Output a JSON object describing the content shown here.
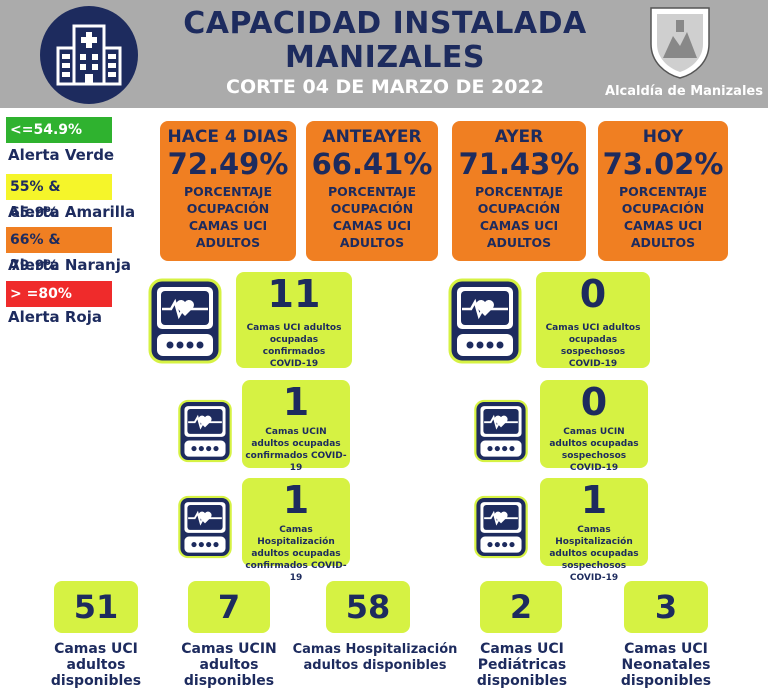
{
  "header": {
    "title_line1": "CAPACIDAD INSTALADA",
    "title_line2": "MANIZALES",
    "subtitle": "CORTE 04 DE MARZO DE 2022",
    "alcaldia": "Alcaldía de Manizales"
  },
  "legend": [
    {
      "range": "<=54.9%",
      "label": "Alerta Verde",
      "color": "#2fb22f"
    },
    {
      "range": "55% & 65.9%",
      "label": "Alerta Amarilla",
      "color": "#f5f52a"
    },
    {
      "range": "66% & 79.9%",
      "label": "Alerta Naranja",
      "color": "#f07f22"
    },
    {
      "range": "> =80%",
      "label": "Alerta Roja",
      "color": "#ef2b2b"
    }
  ],
  "occupancy": [
    {
      "label": "HACE 4 DIAS",
      "value": "72.49%",
      "desc": [
        "PORCENTAJE",
        "OCUPACIÓN",
        "CAMAS UCI",
        "ADULTOS"
      ]
    },
    {
      "label": "ANTEAYER",
      "value": "66.41%",
      "desc": [
        "PORCENTAJE",
        "OCUPACIÓN",
        "CAMAS UCI",
        "ADULTOS"
      ]
    },
    {
      "label": "AYER",
      "value": "71.43%",
      "desc": [
        "PORCENTAJE",
        "OCUPACIÓN",
        "CAMAS UCI",
        "ADULTOS"
      ]
    },
    {
      "label": "HOY",
      "value": "73.02%",
      "desc": [
        "PORCENTAJE",
        "OCUPACIÓN",
        "CAMAS UCI",
        "ADULTOS"
      ]
    }
  ],
  "covid_stats": [
    {
      "value": "11",
      "lines": [
        "Camas UCI adultos",
        "ocupadas confirmados",
        "COVID-19"
      ]
    },
    {
      "value": "0",
      "lines": [
        "Camas UCI adultos",
        "ocupadas sospechosos",
        "COVID-19"
      ]
    },
    {
      "value": "1",
      "lines": [
        "Camas UCIN",
        "adultos ocupadas",
        "confirmados COVID-19"
      ]
    },
    {
      "value": "0",
      "lines": [
        "Camas UCIN",
        "adultos ocupadas",
        "sospechosos COVID-19"
      ]
    },
    {
      "value": "1",
      "lines": [
        "Camas Hospitalización",
        "adultos ocupadas",
        "confirmados COVID-19"
      ]
    },
    {
      "value": "1",
      "lines": [
        "Camas Hospitalización",
        "adultos ocupadas",
        "sospechosos COVID-19"
      ]
    }
  ],
  "available": [
    {
      "value": "51",
      "lines": [
        "Camas UCI",
        "adultos",
        "disponibles"
      ]
    },
    {
      "value": "7",
      "lines": [
        "Camas UCIN",
        "adultos",
        "disponibles"
      ]
    },
    {
      "value": "58",
      "lines": [
        "Camas Hospitalización",
        "adultos disponibles"
      ]
    },
    {
      "value": "2",
      "lines": [
        "Camas UCI",
        "Pediátricas",
        "disponibles"
      ]
    },
    {
      "value": "3",
      "lines": [
        "Camas UCI",
        "Neonatales",
        "disponibles"
      ]
    }
  ],
  "icons": {
    "logo": "hospital-building-icon",
    "crest": "manizales-coat-of-arms",
    "stat": "heart-monitor-icon"
  },
  "colors": {
    "navy": "#1d2b5e",
    "orange": "#f07f22",
    "lime": "#d6f243",
    "gray": "#ababab"
  }
}
